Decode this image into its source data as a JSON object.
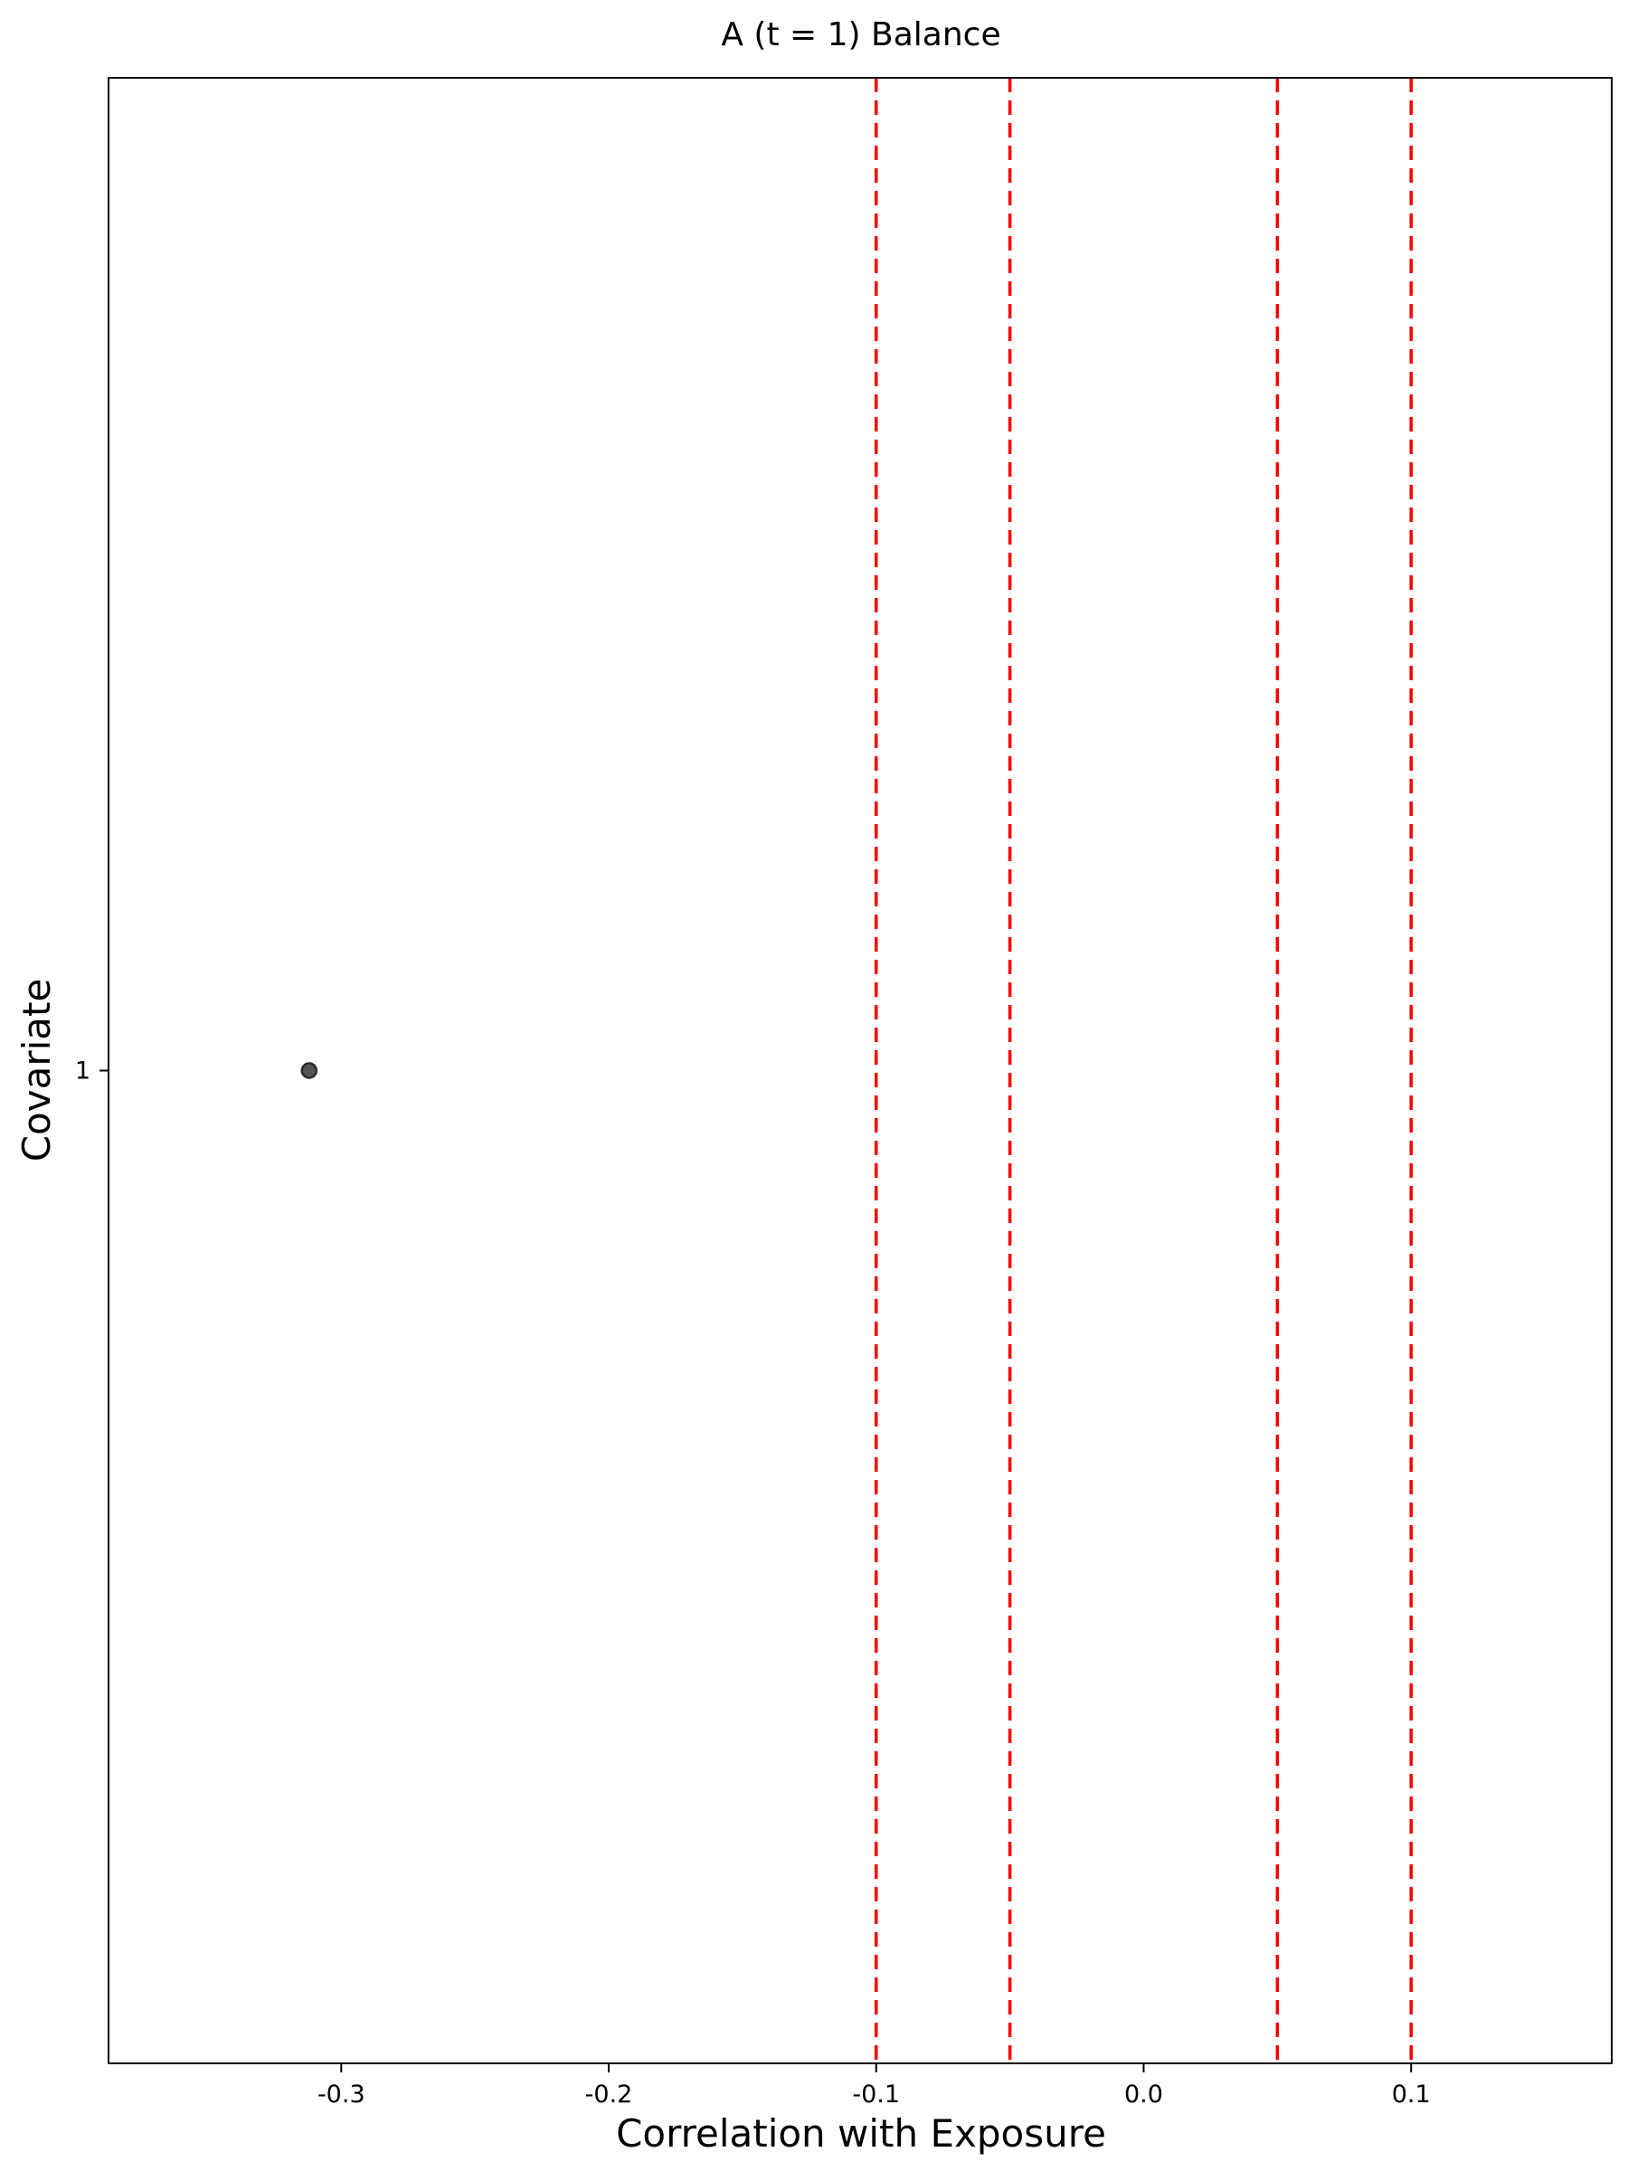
{
  "chart_data": {
    "type": "scatter",
    "title": "A (t = 1) Balance",
    "xlabel": "Correlation with Exposure",
    "ylabel": "Covariate",
    "xlim": [
      -0.387,
      0.175
    ],
    "x_ticks": [
      -0.3,
      -0.2,
      -0.1,
      0.0,
      0.1
    ],
    "x_tick_labels": [
      "-0.3",
      "-0.2",
      "-0.1",
      "0.0",
      "0.1"
    ],
    "y_categories": [
      "1"
    ],
    "points": [
      {
        "covariate": "1",
        "x": -0.312
      }
    ],
    "reference_lines": [
      -0.1,
      -0.05,
      0.05,
      0.1
    ],
    "reference_line_style": "dashed",
    "grid": false,
    "colors": {
      "reference_line": "#ff0000",
      "point_fill": "#555555",
      "point_stroke": "#2a2a2a",
      "point_marker": "#ff0000",
      "frame": "#000000"
    }
  }
}
